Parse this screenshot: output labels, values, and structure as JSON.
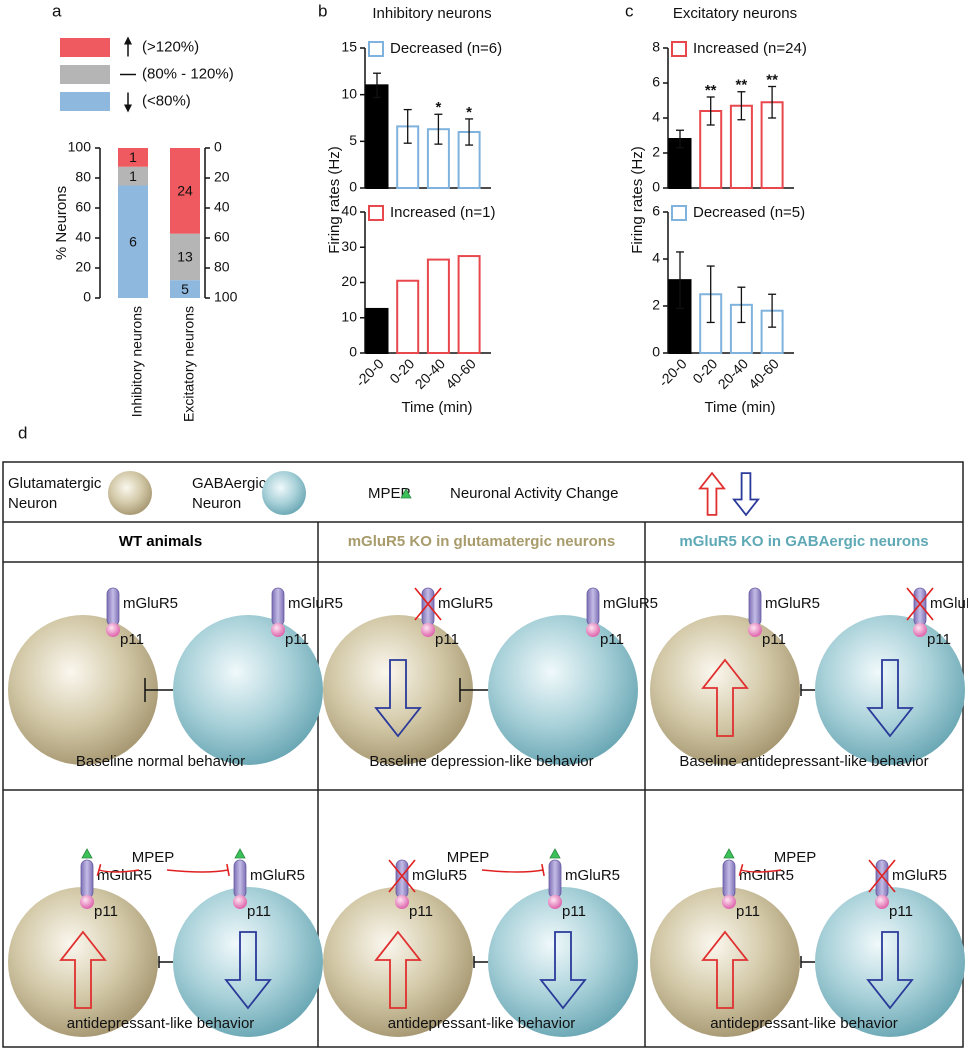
{
  "chart_data": [
    {
      "type": "stacked_bar",
      "panel": "a",
      "categories": [
        "Inhibitory neurons",
        "Excitatory neurons"
      ],
      "series": [
        {
          "name": "(<80%)",
          "color": "#8fb8df",
          "values": [
            75,
            11.9
          ],
          "counts": [
            6,
            5
          ]
        },
        {
          "name": "(80% - 120%)",
          "color": "#b5b5b5",
          "values": [
            12.5,
            31
          ],
          "counts": [
            1,
            13
          ]
        },
        {
          "name": "(>120%)",
          "color": "#ee5a5f",
          "values": [
            12.5,
            57.1
          ],
          "counts": [
            1,
            24
          ]
        }
      ],
      "ylabel": "% Neurons",
      "ylim": [
        0,
        100
      ],
      "yticks": [
        0,
        20,
        40,
        60,
        80,
        100
      ],
      "y2lim": [
        100,
        0
      ],
      "y2ticks": [
        0,
        20,
        40,
        60,
        80,
        100
      ]
    },
    {
      "type": "bar",
      "panel": "b",
      "title": "Inhibitory neurons",
      "ylabel": "Firing rates (Hz)",
      "xlabel": "Time (min)",
      "categories": [
        "-20-0",
        "0-20",
        "20-40",
        "40-60"
      ],
      "subplots": [
        {
          "series": [
            {
              "name": "Decreased (n=6)",
              "color": "#7fb2dc",
              "values": [
                11,
                6.6,
                6.3,
                6.0
              ],
              "errors": [
                1.3,
                1.8,
                1.6,
                1.4
              ],
              "value_annotations": [
                null,
                null,
                "*",
                "*"
              ]
            }
          ],
          "baseline_color": "#000000",
          "ylim": [
            0,
            15
          ],
          "yticks": [
            0,
            5,
            10,
            15
          ]
        },
        {
          "series": [
            {
              "name": "Increased (n=1)",
              "color": "#e8474c",
              "values": [
                12.5,
                20.5,
                26.5,
                27.5
              ]
            }
          ],
          "baseline_color": "#000000",
          "ylim": [
            0,
            40
          ],
          "yticks": [
            0,
            10,
            20,
            30,
            40
          ]
        }
      ]
    },
    {
      "type": "bar",
      "panel": "c",
      "title": "Excitatory neurons",
      "ylabel": "Firing rates (Hz)",
      "xlabel": "Time (min)",
      "categories": [
        "-20-0",
        "0-20",
        "20-40",
        "40-60"
      ],
      "subplots": [
        {
          "series": [
            {
              "name": "Increased (n=24)",
              "color": "#e8474c",
              "values": [
                2.8,
                4.4,
                4.7,
                4.9
              ],
              "errors": [
                0.5,
                0.8,
                0.8,
                0.9
              ],
              "value_annotations": [
                null,
                "**",
                "**",
                "**"
              ]
            }
          ],
          "baseline_color": "#000000",
          "ylim": [
            0,
            8
          ],
          "yticks": [
            0,
            2,
            4,
            6,
            8
          ]
        },
        {
          "series": [
            {
              "name": "Decreased (n=5)",
              "color": "#7fb2dc",
              "values": [
                3.1,
                2.5,
                2.05,
                1.8
              ],
              "errors": [
                1.2,
                1.2,
                0.75,
                0.7
              ]
            }
          ],
          "baseline_color": "#000000",
          "ylim": [
            0,
            6
          ],
          "yticks": [
            0,
            2,
            4,
            6
          ]
        }
      ]
    }
  ],
  "diagram": {
    "panel": "d",
    "legend": {
      "glutamatergic": [
        "Glutamatergic",
        "Neuron"
      ],
      "gabaergic": [
        "GABAergic",
        "Neuron"
      ],
      "drug": "MPEP",
      "activity": "Neuronal Activity Change"
    },
    "receptor": "mGluR5",
    "adapter": "p11",
    "columns": [
      {
        "title": "WT animals",
        "color": "#000000"
      },
      {
        "title": "mGluR5 KO in glutamatergic neurons",
        "color": "#a89b6c"
      },
      {
        "title": "mGluR5 KO in GABAergic neurons",
        "color": "#5ea9b5"
      }
    ],
    "rows": [
      [
        {
          "caption": "Baseline normal behavior",
          "glutamatergic": {
            "knockout": false,
            "activity": null,
            "drug_bound": false
          },
          "gabaergic": {
            "knockout": false,
            "activity": null,
            "drug_bound": false
          }
        },
        {
          "caption": "Baseline depression-like behavior",
          "glutamatergic": {
            "knockout": true,
            "activity": "down",
            "drug_bound": false
          },
          "gabaergic": {
            "knockout": false,
            "activity": null,
            "drug_bound": false
          }
        },
        {
          "caption": "Baseline antidepressant-like behavior",
          "glutamatergic": {
            "knockout": false,
            "activity": "up",
            "drug_bound": false
          },
          "gabaergic": {
            "knockout": true,
            "activity": "down",
            "drug_bound": false
          }
        }
      ],
      [
        {
          "caption": "antidepressant-like behavior",
          "glutamatergic": {
            "knockout": false,
            "activity": "up",
            "drug_bound": true
          },
          "gabaergic": {
            "knockout": false,
            "activity": "down",
            "drug_bound": true
          }
        },
        {
          "caption": "antidepressant-like behavior",
          "glutamatergic": {
            "knockout": true,
            "activity": "up",
            "drug_bound": false
          },
          "gabaergic": {
            "knockout": false,
            "activity": "down",
            "drug_bound": true
          }
        },
        {
          "caption": "antidepressant-like behavior",
          "glutamatergic": {
            "knockout": false,
            "activity": "up",
            "drug_bound": true
          },
          "gabaergic": {
            "knockout": true,
            "activity": "down",
            "drug_bound": false
          }
        }
      ]
    ]
  }
}
